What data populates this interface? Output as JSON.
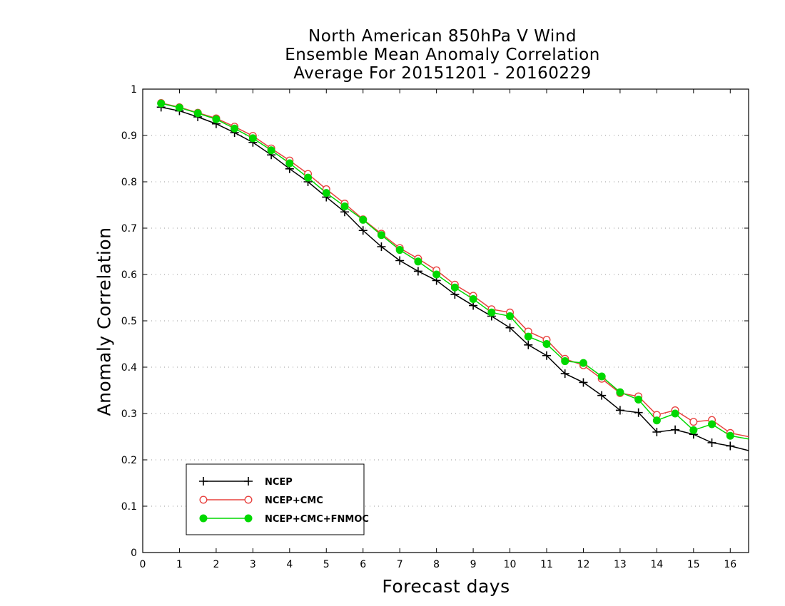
{
  "chart_data": {
    "type": "line",
    "title_lines": [
      "North American 850hPa V Wind",
      "Ensemble Mean Anomaly Correlation",
      "Average For 20151201 - 20160229"
    ],
    "xlabel": "Forecast days",
    "ylabel": "Anomaly Correlation",
    "xlim": [
      0,
      16.5
    ],
    "ylim": [
      0,
      1
    ],
    "x_ticks": [
      0,
      1,
      2,
      3,
      4,
      5,
      6,
      7,
      8,
      9,
      10,
      11,
      12,
      13,
      14,
      15,
      16
    ],
    "y_ticks": [
      0,
      0.1,
      0.2,
      0.3,
      0.4,
      0.5,
      0.6,
      0.7,
      0.8,
      0.9,
      1
    ],
    "y_grid": true,
    "legend_position": "bottom-left",
    "x": [
      0.5,
      1,
      1.5,
      2,
      2.5,
      3,
      3.5,
      4,
      4.5,
      5,
      5.5,
      6,
      6.5,
      7,
      7.5,
      8,
      8.5,
      9,
      9.5,
      10,
      10.5,
      11,
      11.5,
      12,
      12.5,
      13,
      13.5,
      14,
      14.5,
      15,
      15.5,
      16,
      16.5
    ],
    "series": [
      {
        "name": "NCEP",
        "color": "#000000",
        "marker": "plus",
        "values": [
          0.961,
          0.953,
          0.94,
          0.925,
          0.906,
          0.885,
          0.858,
          0.828,
          0.8,
          0.767,
          0.735,
          0.695,
          0.66,
          0.63,
          0.607,
          0.587,
          0.557,
          0.533,
          0.51,
          0.485,
          0.448,
          0.425,
          0.386,
          0.367,
          0.339,
          0.307,
          0.302,
          0.26,
          0.265,
          0.255,
          0.237,
          0.23,
          0.22
        ]
      },
      {
        "name": "NCEP+CMC",
        "color": "#e8423f",
        "marker": "open-circle",
        "values": [
          0.97,
          0.961,
          0.949,
          0.937,
          0.919,
          0.899,
          0.872,
          0.846,
          0.817,
          0.784,
          0.753,
          0.719,
          0.688,
          0.657,
          0.634,
          0.609,
          0.578,
          0.554,
          0.525,
          0.518,
          0.477,
          0.459,
          0.418,
          0.404,
          0.375,
          0.344,
          0.337,
          0.297,
          0.307,
          0.282,
          0.286,
          0.258,
          0.25
        ]
      },
      {
        "name": "NCEP+CMC+FNMOC",
        "color": "#00d800",
        "marker": "filled-circle",
        "values": [
          0.969,
          0.96,
          0.948,
          0.935,
          0.915,
          0.894,
          0.868,
          0.84,
          0.809,
          0.776,
          0.747,
          0.718,
          0.685,
          0.653,
          0.628,
          0.6,
          0.572,
          0.547,
          0.518,
          0.51,
          0.466,
          0.45,
          0.413,
          0.409,
          0.38,
          0.346,
          0.33,
          0.285,
          0.3,
          0.264,
          0.277,
          0.252,
          0.245
        ]
      }
    ]
  }
}
